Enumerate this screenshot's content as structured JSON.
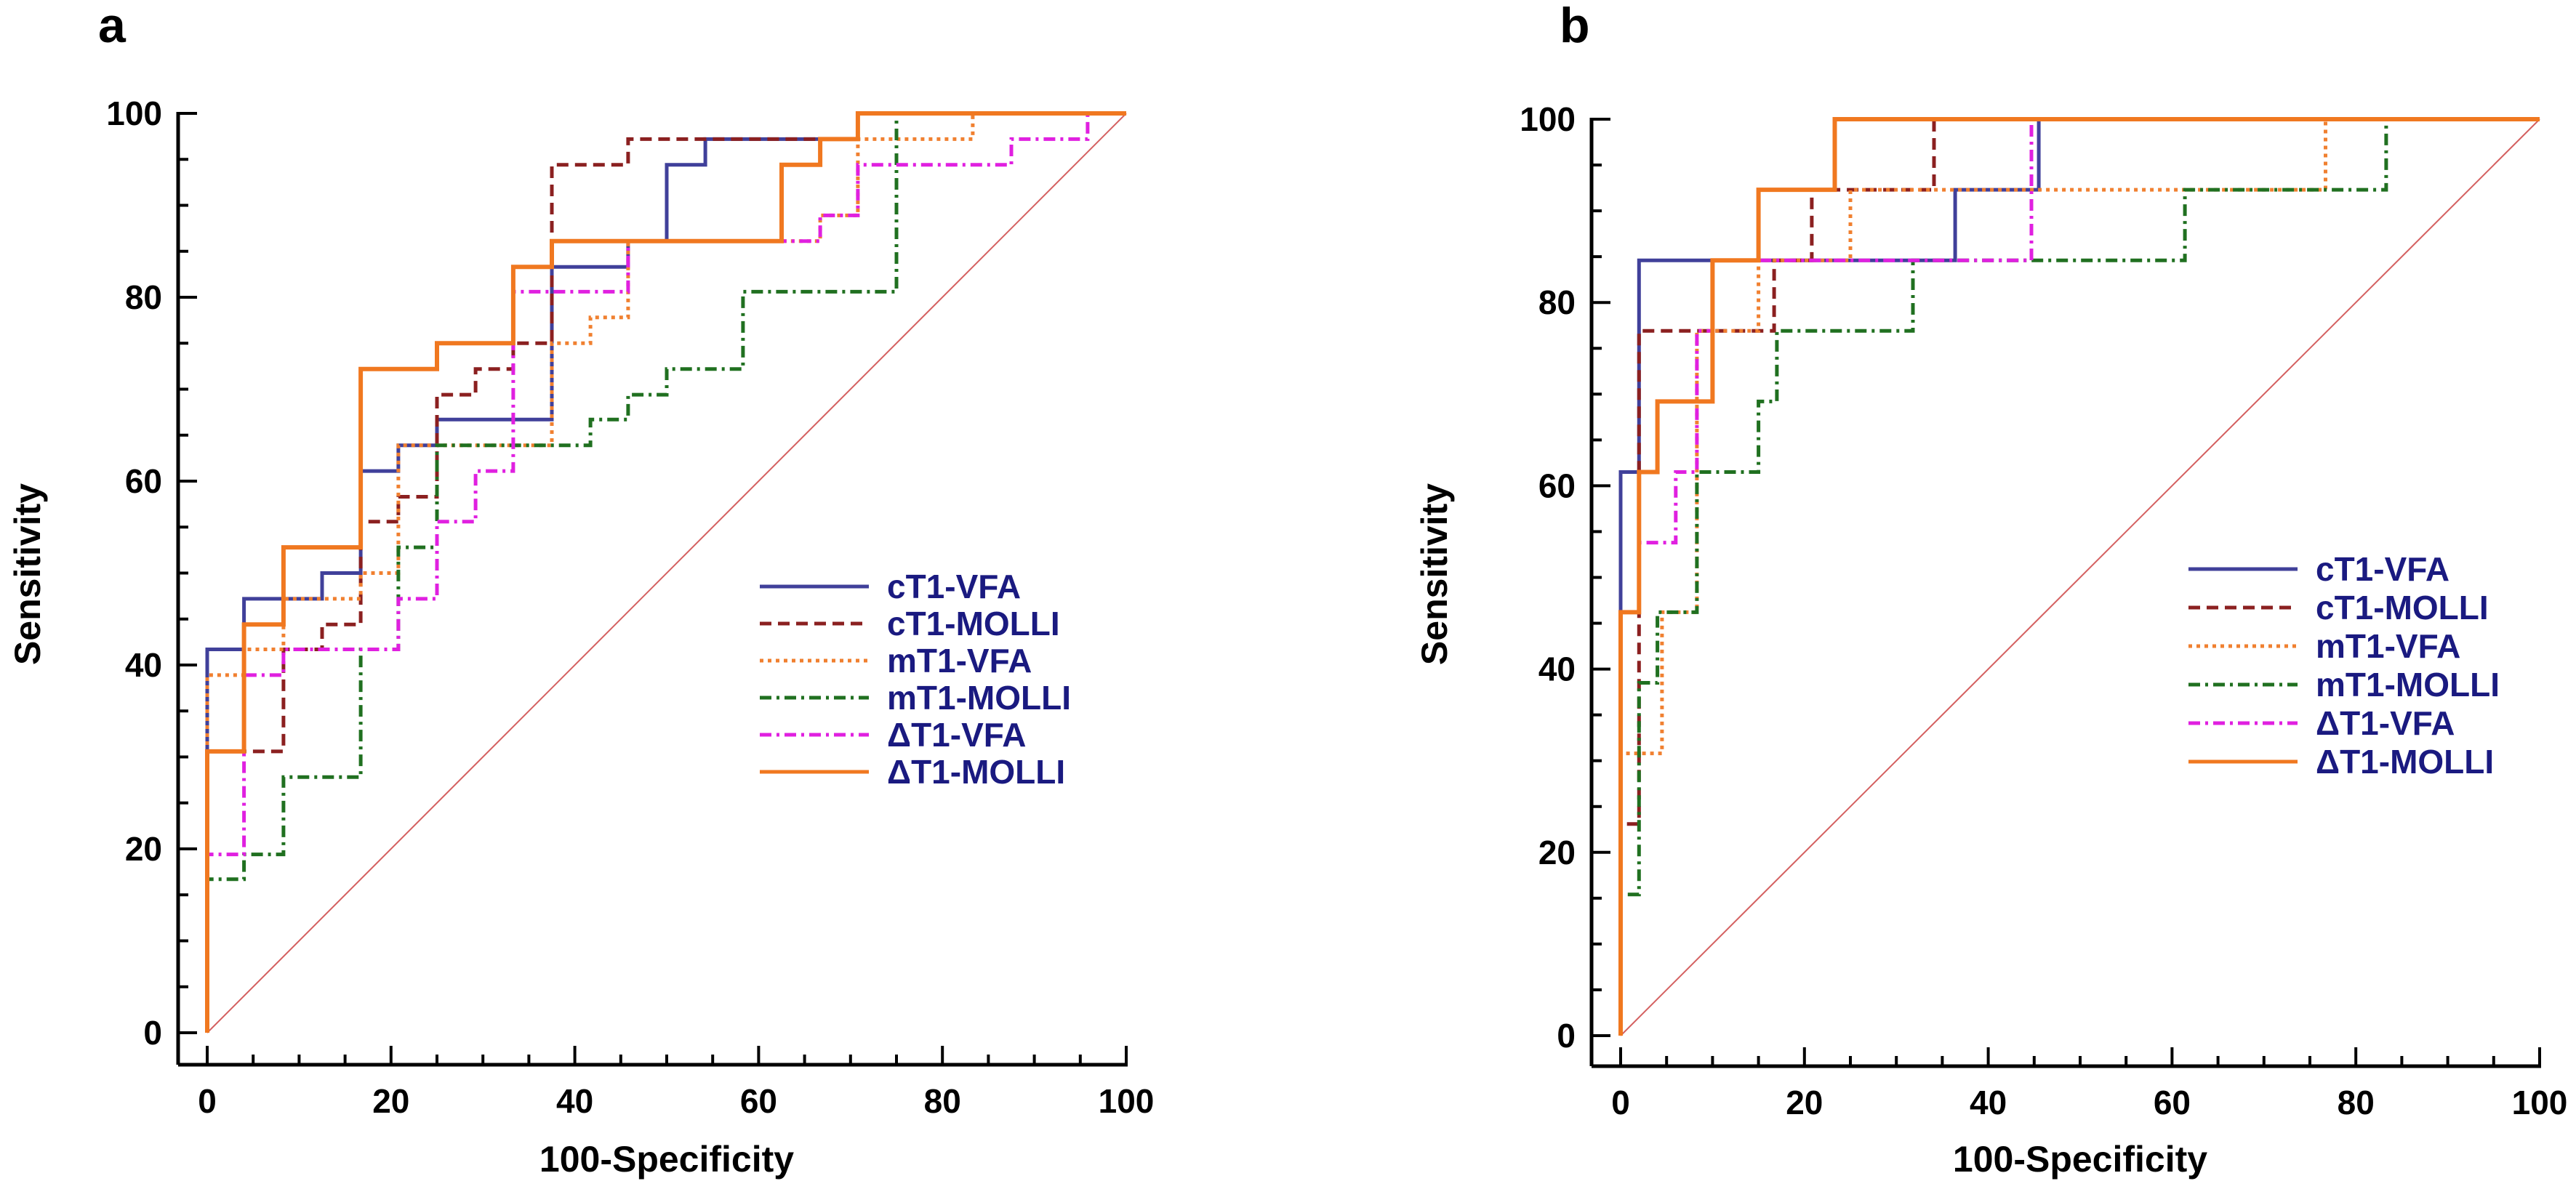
{
  "chart_data": [
    {
      "panel": "a",
      "type": "line",
      "subtype": "roc",
      "xlabel": "100-Specificity",
      "ylabel": "Sensitivity",
      "xlim": [
        0,
        100
      ],
      "ylim": [
        0,
        100
      ],
      "xticks": [
        "0",
        "20",
        "40",
        "60",
        "80",
        "100"
      ],
      "yticks": [
        "0",
        "20",
        "40",
        "60",
        "80",
        "100"
      ],
      "legend_position": "right-middle",
      "reference_line": {
        "name": "chance",
        "color": "#d46060",
        "x": [
          0,
          100
        ],
        "y": [
          0,
          100
        ]
      },
      "series": [
        {
          "name": "cT1-VFA",
          "color": "#40409a",
          "dash": "solid",
          "x": [
            0,
            0,
            4,
            4,
            12.5,
            12.5,
            16.7,
            16.7,
            20.8,
            20.8,
            25,
            25,
            29.2,
            29.2,
            37.5,
            37.5,
            45.8,
            45.8,
            50,
            50,
            54.2,
            54.2,
            70.8,
            70.8,
            100
          ],
          "y": [
            0,
            41.7,
            41.7,
            47.2,
            47.2,
            50,
            50,
            61.1,
            61.1,
            63.9,
            63.9,
            66.7,
            66.7,
            66.7,
            66.7,
            83.3,
            83.3,
            86.1,
            86.1,
            94.4,
            94.4,
            97.2,
            97.2,
            100,
            100
          ]
        },
        {
          "name": "cT1-MOLLI",
          "color": "#8b2020",
          "dash": "dashed",
          "x": [
            0,
            0,
            4,
            4,
            8.3,
            8.3,
            12.5,
            12.5,
            16.7,
            16.7,
            20.8,
            20.8,
            25,
            25,
            29.2,
            29.2,
            33.3,
            33.3,
            37.5,
            37.5,
            45.8,
            45.8,
            70.8,
            70.8,
            100
          ],
          "y": [
            0,
            30.6,
            30.6,
            30.6,
            30.6,
            41.7,
            41.7,
            44.4,
            44.4,
            55.6,
            55.6,
            58.3,
            58.3,
            69.4,
            69.4,
            72.2,
            72.2,
            75,
            75,
            94.4,
            94.4,
            97.2,
            97.2,
            100,
            100
          ]
        },
        {
          "name": "mT1-VFA",
          "color": "#f08030",
          "dash": "dotted",
          "x": [
            0,
            0,
            4,
            4,
            8.3,
            8.3,
            16.7,
            16.7,
            20.8,
            20.8,
            25,
            25,
            37.5,
            37.5,
            41.7,
            41.7,
            45.8,
            45.8,
            66.7,
            66.7,
            70.8,
            70.8,
            83.3,
            83.3,
            100
          ],
          "y": [
            0,
            38.9,
            38.9,
            41.7,
            41.7,
            47.2,
            47.2,
            50,
            50,
            63.9,
            63.9,
            63.9,
            63.9,
            75,
            75,
            77.8,
            77.8,
            86.1,
            86.1,
            88.9,
            88.9,
            97.2,
            97.2,
            100,
            100
          ]
        },
        {
          "name": "mT1-MOLLI",
          "color": "#207020",
          "dash": "dashdot",
          "x": [
            0,
            0,
            4,
            4,
            8.3,
            8.3,
            16.7,
            16.7,
            20.8,
            20.8,
            25,
            25,
            41.7,
            41.7,
            45.8,
            45.8,
            50,
            50,
            58.3,
            58.3,
            75,
            75,
            100
          ],
          "y": [
            0,
            16.7,
            16.7,
            19.4,
            19.4,
            27.8,
            27.8,
            41.7,
            41.7,
            52.8,
            52.8,
            63.9,
            63.9,
            66.7,
            66.7,
            69.4,
            69.4,
            72.2,
            72.2,
            80.6,
            80.6,
            100,
            100
          ]
        },
        {
          "name": "ΔT1-VFA",
          "color": "#e020e0",
          "dash": "dashdot",
          "x": [
            0,
            0,
            4,
            4,
            8.3,
            8.3,
            16.7,
            16.7,
            20.8,
            20.8,
            25,
            25,
            29.2,
            29.2,
            33.3,
            33.3,
            45.8,
            45.8,
            62.5,
            62.5,
            66.7,
            66.7,
            70.8,
            70.8,
            87.5,
            87.5,
            95.8,
            95.8
          ],
          "y": [
            0,
            19.4,
            19.4,
            38.9,
            38.9,
            41.7,
            41.7,
            41.7,
            41.7,
            47.2,
            47.2,
            55.6,
            55.6,
            61.1,
            61.1,
            80.6,
            80.6,
            86.1,
            86.1,
            86.1,
            86.1,
            88.9,
            88.9,
            94.4,
            94.4,
            97.2,
            97.2,
            100
          ]
        },
        {
          "name": "ΔT1-MOLLI",
          "color": "#f07820",
          "dash": "solid",
          "x": [
            0,
            0,
            4,
            4,
            8.3,
            8.3,
            16.7,
            16.7,
            25,
            25,
            33.3,
            33.3,
            37.5,
            37.5,
            62.5,
            62.5,
            66.7,
            66.7,
            70.8,
            70.8,
            100
          ],
          "y": [
            0,
            30.6,
            30.6,
            44.4,
            44.4,
            52.8,
            52.8,
            72.2,
            72.2,
            75,
            75,
            83.3,
            83.3,
            86.1,
            86.1,
            94.4,
            94.4,
            97.2,
            97.2,
            100,
            100
          ]
        }
      ]
    },
    {
      "panel": "b",
      "type": "line",
      "subtype": "roc",
      "xlabel": "100-Specificity",
      "ylabel": "Sensitivity",
      "xlim": [
        0,
        100
      ],
      "ylim": [
        0,
        100
      ],
      "xticks": [
        "0",
        "20",
        "40",
        "60",
        "80",
        "100"
      ],
      "yticks": [
        "0",
        "20",
        "40",
        "60",
        "80",
        "100"
      ],
      "legend_position": "right-middle",
      "reference_line": {
        "name": "chance",
        "color": "#d46060",
        "x": [
          0,
          100
        ],
        "y": [
          0,
          100
        ]
      },
      "series": [
        {
          "name": "cT1-VFA",
          "color": "#40409a",
          "dash": "solid",
          "x": [
            0,
            0,
            2,
            2,
            36.4,
            36.4,
            45.5,
            45.5,
            100
          ],
          "y": [
            0,
            61.5,
            61.5,
            84.6,
            84.6,
            92.3,
            92.3,
            100,
            100
          ]
        },
        {
          "name": "cT1-MOLLI",
          "color": "#8b2020",
          "dash": "dashed",
          "x": [
            0,
            0,
            2,
            2,
            16.7,
            16.7,
            20.8,
            20.8,
            34.1,
            34.1,
            100
          ],
          "y": [
            0,
            23.1,
            23.1,
            76.9,
            76.9,
            84.6,
            84.6,
            92.3,
            92.3,
            100,
            100
          ]
        },
        {
          "name": "mT1-VFA",
          "color": "#f08030",
          "dash": "dotted",
          "x": [
            0,
            0,
            4.5,
            4.5,
            8.3,
            8.3,
            15,
            15,
            22.7,
            22.7,
            25,
            25,
            76.7,
            76.7,
            100
          ],
          "y": [
            0,
            30.8,
            30.8,
            46.2,
            46.2,
            76.9,
            76.9,
            84.6,
            84.6,
            84.6,
            84.6,
            92.3,
            92.3,
            100,
            100
          ]
        },
        {
          "name": "mT1-MOLLI",
          "color": "#207020",
          "dash": "dashdot",
          "x": [
            0,
            0,
            2,
            2,
            4,
            4,
            8.3,
            8.3,
            15,
            15,
            17,
            17,
            31.8,
            31.8,
            61.4,
            61.4,
            83.3,
            83.3,
            100
          ],
          "y": [
            0,
            15.4,
            15.4,
            38.5,
            38.5,
            46.2,
            46.2,
            61.5,
            61.5,
            69.2,
            69.2,
            76.9,
            76.9,
            84.6,
            84.6,
            92.3,
            92.3,
            100,
            100
          ]
        },
        {
          "name": "ΔT1-VFA",
          "color": "#e020e0",
          "dash": "dashdot",
          "x": [
            0,
            0,
            2,
            2,
            6,
            6,
            8.3,
            8.3,
            10,
            10,
            44.7,
            44.7,
            100
          ],
          "y": [
            0,
            46.2,
            46.2,
            53.8,
            53.8,
            61.5,
            61.5,
            76.9,
            76.9,
            84.6,
            84.6,
            100,
            100
          ]
        },
        {
          "name": "ΔT1-MOLLI",
          "color": "#f07820",
          "dash": "solid",
          "x": [
            0,
            0,
            2,
            2,
            4,
            4,
            10,
            10,
            12.5,
            12.5,
            15,
            15,
            23.3,
            23.3,
            100
          ],
          "y": [
            0,
            46.2,
            46.2,
            61.5,
            61.5,
            69.2,
            69.2,
            84.6,
            84.6,
            84.6,
            84.6,
            92.3,
            92.3,
            100,
            100
          ]
        }
      ]
    }
  ]
}
